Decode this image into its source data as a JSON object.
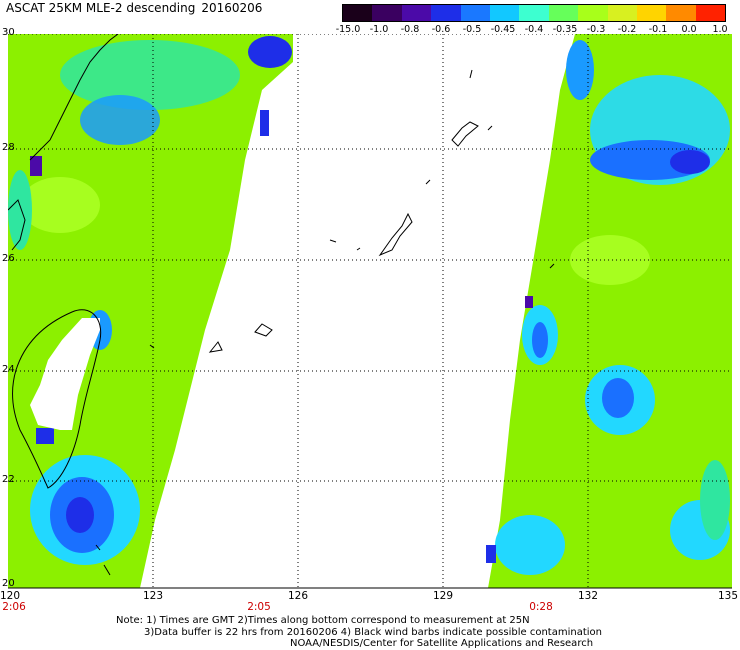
{
  "title": {
    "product": "ASCAT 25KM MLE-2 descending",
    "date": "20160206"
  },
  "colorbar": {
    "labels": [
      "-15.0",
      "-1.0",
      "-0.8",
      "-0.6",
      "-0.5",
      "-0.45",
      "-0.4",
      "-0.35",
      "-0.3",
      "-0.2",
      "-0.1",
      "0.0",
      "1.0"
    ],
    "colors": [
      "#1a001a",
      "#3a0060",
      "#4b0aa8",
      "#1e2ee8",
      "#1a78ff",
      "#12c8ff",
      "#3dffd0",
      "#66ff5a",
      "#a8ff1a",
      "#d8f020",
      "#ffd400",
      "#ff8a00",
      "#ff2200"
    ]
  },
  "map": {
    "lon_range": [
      120,
      135
    ],
    "lat_range": [
      20,
      30
    ],
    "lat_labels": [
      "30",
      "28",
      "26",
      "24",
      "22",
      "20"
    ],
    "lon_labels": [
      "120",
      "123",
      "126",
      "129",
      "132",
      "135"
    ],
    "pass_times": [
      {
        "lon": "120",
        "time": "2:06"
      },
      {
        "lon": "125",
        "time": "2:05"
      },
      {
        "lon": "131",
        "time": "0:28"
      }
    ],
    "colors": {
      "ocean": "#8cf000",
      "land": "#ffffff",
      "grid": "#000000"
    }
  },
  "notes": {
    "line1": "Note: 1) Times are GMT 2)Times along bottom correspond to measurement at 25N",
    "line2": "3)Data buffer is 22 hrs from 20160206 4) Black wind barbs indicate possible contamination",
    "line3": "NOAA/NESDIS/Center for Satellite Applications and Research"
  }
}
